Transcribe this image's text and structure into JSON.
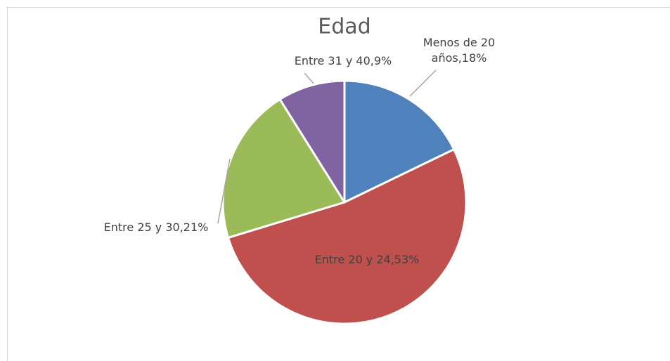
{
  "chart_data": {
    "type": "pie",
    "title": "Edad",
    "values": [
      18,
      53,
      21,
      9
    ],
    "value_labels": [
      "Menos de 20 años,18%",
      "Entre 20 y 24,53%",
      "Entre 25 y 30,21%",
      "Entre 31 y 40,9%"
    ],
    "colors": [
      "#4f81bd",
      "#c0504d",
      "#9bbb59",
      "#8064a2"
    ]
  }
}
